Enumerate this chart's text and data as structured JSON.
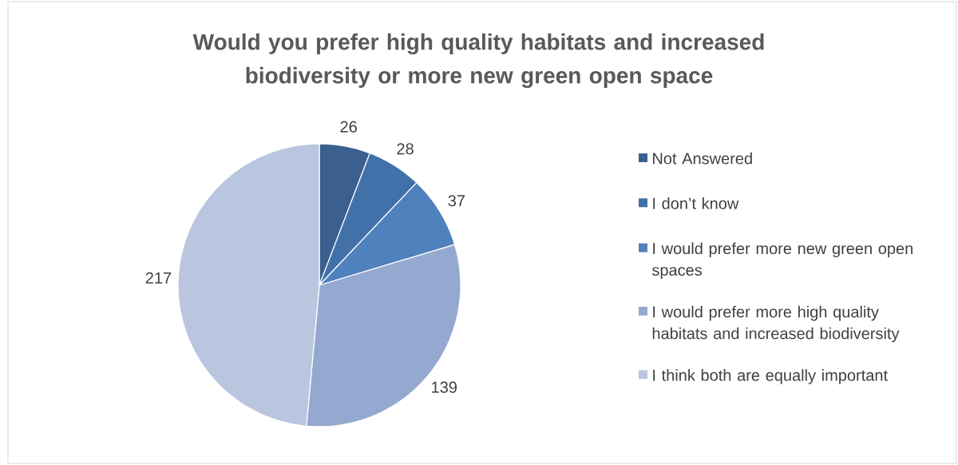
{
  "chart_data": {
    "type": "pie",
    "title": "Would you prefer high quality habitats and increased biodiversity or more new green open space",
    "categories": [
      "Not Answered",
      "I don’t know",
      "I would prefer more new green open spaces",
      "I would prefer more high quality habitats and increased biodiversity",
      "I think both are equally important"
    ],
    "values": [
      26,
      28,
      37,
      139,
      217
    ],
    "colors": [
      "#3b5f8f",
      "#4271aa",
      "#4f81bd",
      "#95a9d0",
      "#bac6e0"
    ],
    "data_labels": true,
    "legend": "right"
  }
}
